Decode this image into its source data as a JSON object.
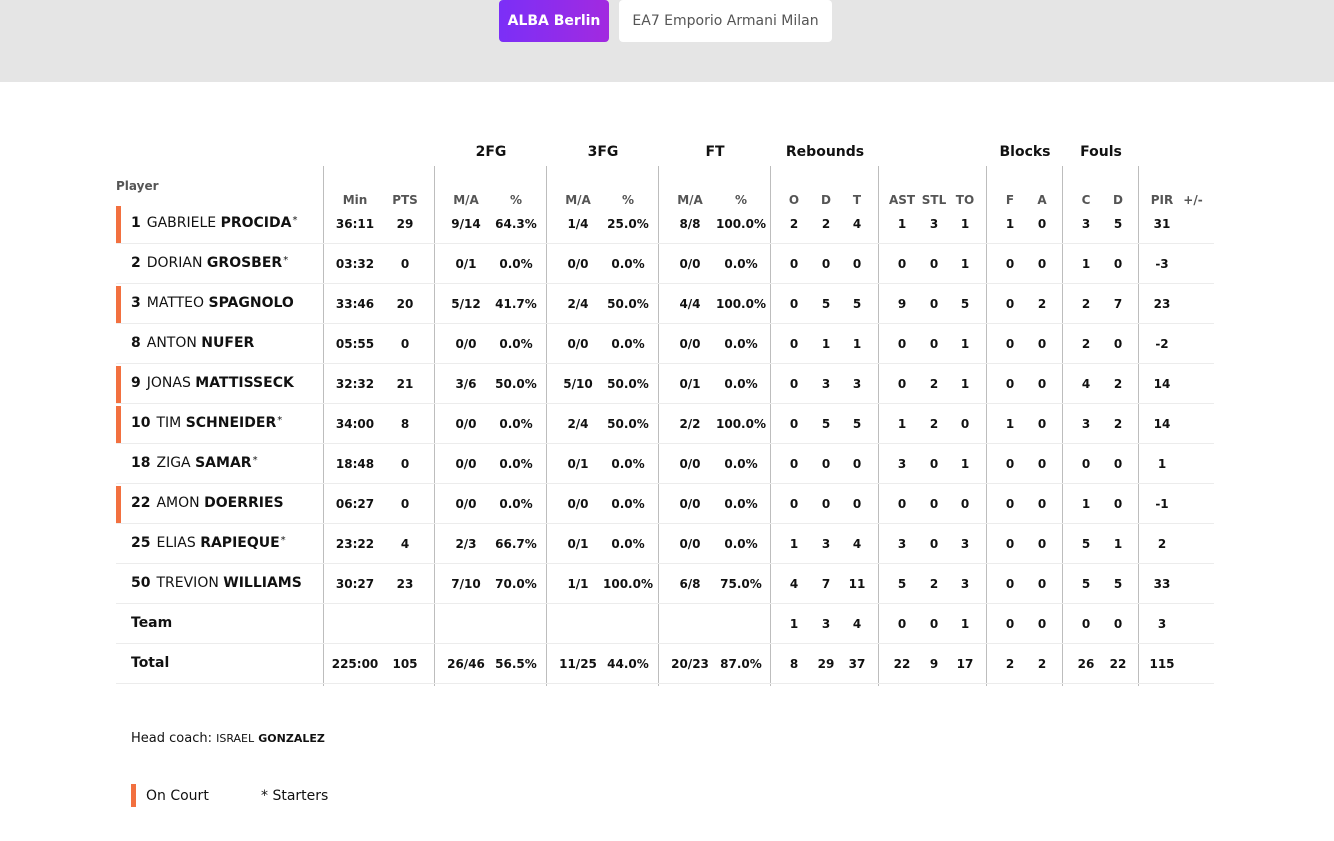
{
  "tabs": [
    {
      "label": "ALBA Berlin",
      "active": true
    },
    {
      "label": "EA7 Emporio Armani Milan",
      "active": false
    }
  ],
  "accent_color": "#7b2ff7",
  "oncourt_color": "#f2703f",
  "table": {
    "player_header": "Player",
    "groups": [
      "2FG",
      "3FG",
      "FT",
      "Rebounds",
      "Blocks",
      "Fouls"
    ],
    "sub_headers": [
      "Min",
      "PTS",
      "M/A",
      "%",
      "M/A",
      "%",
      "M/A",
      "%",
      "O",
      "D",
      "T",
      "AST",
      "STL",
      "TO",
      "F",
      "A",
      "C",
      "D",
      "PIR",
      "+/-"
    ],
    "players": [
      {
        "num": "1",
        "first": "GABRIELE",
        "last": "PROCIDA",
        "starter": true,
        "on_court": true,
        "stats": [
          "36:11",
          "29",
          "9/14",
          "64.3%",
          "1/4",
          "25.0%",
          "8/8",
          "100.0%",
          "2",
          "2",
          "4",
          "1",
          "3",
          "1",
          "1",
          "0",
          "3",
          "5",
          "31",
          ""
        ]
      },
      {
        "num": "2",
        "first": "DORIAN",
        "last": "GROSBER",
        "starter": true,
        "on_court": false,
        "stats": [
          "03:32",
          "0",
          "0/1",
          "0.0%",
          "0/0",
          "0.0%",
          "0/0",
          "0.0%",
          "0",
          "0",
          "0",
          "0",
          "0",
          "1",
          "0",
          "0",
          "1",
          "0",
          "-3",
          ""
        ]
      },
      {
        "num": "3",
        "first": "MATTEO",
        "last": "SPAGNOLO",
        "starter": false,
        "on_court": true,
        "stats": [
          "33:46",
          "20",
          "5/12",
          "41.7%",
          "2/4",
          "50.0%",
          "4/4",
          "100.0%",
          "0",
          "5",
          "5",
          "9",
          "0",
          "5",
          "0",
          "2",
          "2",
          "7",
          "23",
          ""
        ]
      },
      {
        "num": "8",
        "first": "ANTON",
        "last": "NUFER",
        "starter": false,
        "on_court": false,
        "stats": [
          "05:55",
          "0",
          "0/0",
          "0.0%",
          "0/0",
          "0.0%",
          "0/0",
          "0.0%",
          "0",
          "1",
          "1",
          "0",
          "0",
          "1",
          "0",
          "0",
          "2",
          "0",
          "-2",
          ""
        ]
      },
      {
        "num": "9",
        "first": "JONAS",
        "last": "MATTISSECK",
        "starter": false,
        "on_court": true,
        "stats": [
          "32:32",
          "21",
          "3/6",
          "50.0%",
          "5/10",
          "50.0%",
          "0/1",
          "0.0%",
          "0",
          "3",
          "3",
          "0",
          "2",
          "1",
          "0",
          "0",
          "4",
          "2",
          "14",
          ""
        ]
      },
      {
        "num": "10",
        "first": "TIM",
        "last": "SCHNEIDER",
        "starter": true,
        "on_court": true,
        "stats": [
          "34:00",
          "8",
          "0/0",
          "0.0%",
          "2/4",
          "50.0%",
          "2/2",
          "100.0%",
          "0",
          "5",
          "5",
          "1",
          "2",
          "0",
          "1",
          "0",
          "3",
          "2",
          "14",
          ""
        ]
      },
      {
        "num": "18",
        "first": "ZIGA",
        "last": "SAMAR",
        "starter": true,
        "on_court": false,
        "stats": [
          "18:48",
          "0",
          "0/0",
          "0.0%",
          "0/1",
          "0.0%",
          "0/0",
          "0.0%",
          "0",
          "0",
          "0",
          "3",
          "0",
          "1",
          "0",
          "0",
          "0",
          "0",
          "1",
          ""
        ]
      },
      {
        "num": "22",
        "first": "AMON",
        "last": "DOERRIES",
        "starter": false,
        "on_court": true,
        "stats": [
          "06:27",
          "0",
          "0/0",
          "0.0%",
          "0/0",
          "0.0%",
          "0/0",
          "0.0%",
          "0",
          "0",
          "0",
          "0",
          "0",
          "0",
          "0",
          "0",
          "1",
          "0",
          "-1",
          ""
        ]
      },
      {
        "num": "25",
        "first": "ELIAS",
        "last": "RAPIEQUE",
        "starter": true,
        "on_court": false,
        "stats": [
          "23:22",
          "4",
          "2/3",
          "66.7%",
          "0/1",
          "0.0%",
          "0/0",
          "0.0%",
          "1",
          "3",
          "4",
          "3",
          "0",
          "3",
          "0",
          "0",
          "5",
          "1",
          "2",
          ""
        ]
      },
      {
        "num": "50",
        "first": "TREVION",
        "last": "WILLIAMS",
        "starter": false,
        "on_court": false,
        "stats": [
          "30:27",
          "23",
          "7/10",
          "70.0%",
          "1/1",
          "100.0%",
          "6/8",
          "75.0%",
          "4",
          "7",
          "11",
          "5",
          "2",
          "3",
          "0",
          "0",
          "5",
          "5",
          "33",
          ""
        ]
      }
    ],
    "team_row": {
      "label": "Team",
      "stats": [
        "",
        "",
        "",
        "",
        "",
        "",
        "",
        "",
        "1",
        "3",
        "4",
        "0",
        "0",
        "1",
        "0",
        "0",
        "0",
        "0",
        "3",
        ""
      ]
    },
    "total_row": {
      "label": "Total",
      "stats": [
        "225:00",
        "105",
        "26/46",
        "56.5%",
        "11/25",
        "44.0%",
        "20/23",
        "87.0%",
        "8",
        "29",
        "37",
        "22",
        "9",
        "17",
        "2",
        "2",
        "26",
        "22",
        "115",
        ""
      ]
    }
  },
  "coach": {
    "label": "Head coach:",
    "first": "ISRAEL",
    "last": "GONZALEZ"
  },
  "legend": {
    "on_court": "On Court",
    "starters": "* Starters"
  }
}
